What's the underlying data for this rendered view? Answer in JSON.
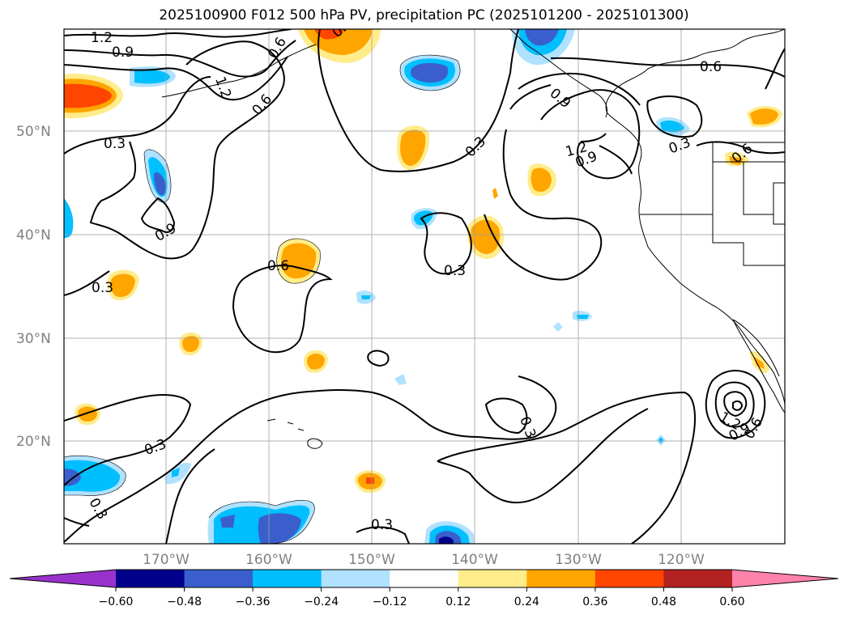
{
  "title": "2025100900 F012 500 hPa PV, precipitation PC (2025101200 - 2025101300)",
  "lat_labels": [
    "50°N",
    "40°N",
    "30°N",
    "20°N"
  ],
  "lon_labels": [
    "170°W",
    "160°W",
    "150°W",
    "140°W",
    "130°W",
    "120°W"
  ],
  "contour_labels": [
    "1.2",
    "0.9",
    "0.6",
    "0.3",
    "0.3",
    "0.9",
    "0.6",
    "0.3",
    "1.2",
    "0.9",
    "0.6",
    "0.3",
    "0.3",
    "0.6",
    "0.3",
    "0.3",
    "0.3",
    "0.3",
    "0.3",
    "1.2",
    "0.9",
    "0.6",
    "0.9",
    "1.2",
    "0.6"
  ],
  "colorbar": {
    "ticks": [
      "−0.60",
      "−0.48",
      "−0.36",
      "−0.24",
      "−0.12",
      "0.12",
      "0.24",
      "0.36",
      "0.48",
      "0.60"
    ],
    "colors": [
      "#9932cc",
      "#00008b",
      "#3a5fcd",
      "#00bfff",
      "#b0e2ff",
      "#ffffff",
      "#ffec8b",
      "#ffa500",
      "#ff4500",
      "#b22222",
      "#ff82ab"
    ]
  }
}
